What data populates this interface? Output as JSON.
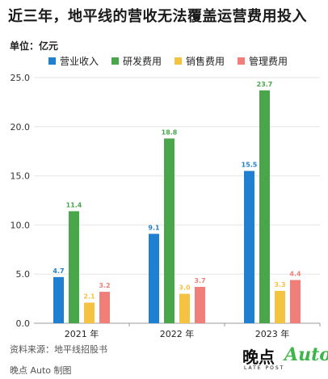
{
  "title": "近三年，地平线的营收无法覆盖运营费用投入",
  "unit_label": "单位：亿元",
  "source": "资料来源：地平线招股书",
  "maker": "晚点 Auto 制图",
  "logo": {
    "cn": "晚点",
    "en": "LATE POST",
    "auto": "Auto"
  },
  "colors": {
    "revenue": "#1f7fd1",
    "rnd": "#4aa64a",
    "sales": "#f5c342",
    "admin": "#ef7f78",
    "axis": "#999999",
    "grid": "#e6e6e6"
  },
  "chart_data": {
    "type": "bar",
    "categories": [
      "2021 年",
      "2022 年",
      "2023 年"
    ],
    "ylim": [
      0,
      25
    ],
    "yticks": [
      "0.0",
      "5.0",
      "10.0",
      "15.0",
      "20.0",
      "25.0"
    ],
    "grid": true,
    "legend_position": "top",
    "series": [
      {
        "name": "营业收入",
        "values": [
          4.7,
          9.1,
          15.5
        ],
        "labels": [
          "4.7",
          "9.1",
          "15.5"
        ]
      },
      {
        "name": "研发费用",
        "values": [
          11.4,
          18.8,
          23.7
        ],
        "labels": [
          "11.4",
          "18.8",
          "23.7"
        ]
      },
      {
        "name": "销售费用",
        "values": [
          2.1,
          3.0,
          3.3
        ],
        "labels": [
          "2.1",
          "3.0",
          "3.3"
        ]
      },
      {
        "name": "管理费用",
        "values": [
          3.2,
          3.7,
          4.4
        ],
        "labels": [
          "3.2",
          "3.7",
          "4.4"
        ]
      }
    ]
  }
}
